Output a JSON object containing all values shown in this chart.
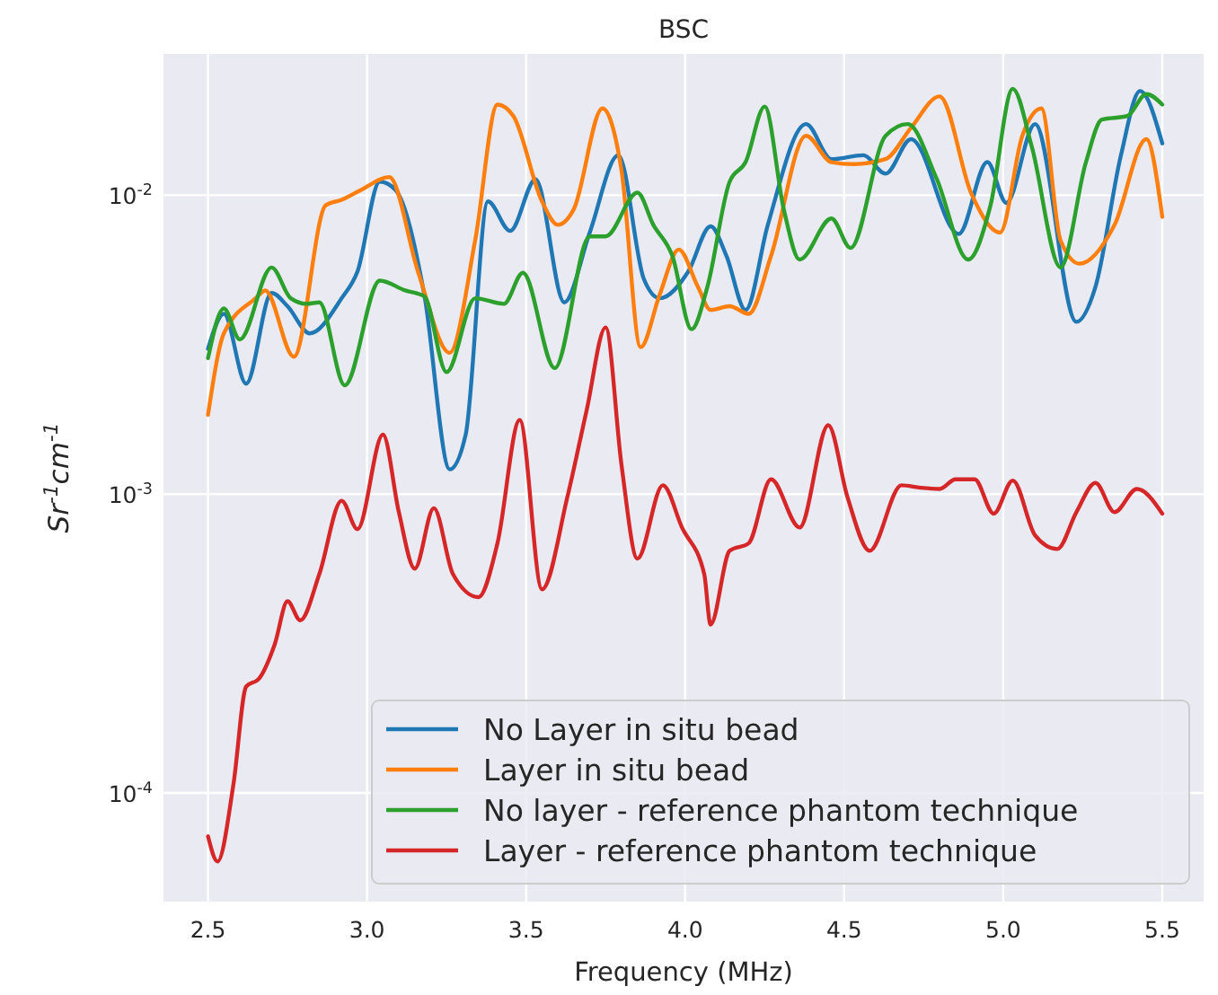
{
  "chart_data": {
    "type": "line",
    "title": "BSC",
    "xlabel": "Frequency (MHz)",
    "ylabel": "Sr$^{-1}$cm$^{-1}$",
    "log": "y",
    "grid": true,
    "legend": "bottom right",
    "line_style": "solid",
    "marker": "none",
    "xlim": [
      2.36,
      5.63
    ],
    "xticks": [
      {
        "value": 2.5,
        "label": "2.5"
      },
      {
        "value": 3,
        "label": "3.0"
      },
      {
        "value": 3.5,
        "label": "3.5"
      },
      {
        "value": 4,
        "label": "4.0"
      },
      {
        "value": 4.5,
        "label": "4.5"
      },
      {
        "value": 5,
        "label": "5.0"
      },
      {
        "value": 5.5,
        "label": "5.5"
      }
    ],
    "ylim": [
      4.33e-05,
      0.0297
    ],
    "yticks": [
      {
        "value": 0.0001,
        "label": "10$^{-4}$"
      },
      {
        "value": 0.001,
        "label": "10$^{-3}$"
      },
      {
        "value": 0.01,
        "label": "10$^{-2}$"
      }
    ],
    "series": [
      {
        "name": "No Layer in situ bead",
        "color": "#1f77b4",
        "x": [
          2.5,
          2.55,
          2.62,
          2.7,
          2.75,
          2.82,
          2.92,
          2.97,
          3.04,
          3.09,
          3.18,
          3.26,
          3.31,
          3.38,
          3.45,
          3.53,
          3.62,
          3.7,
          3.79,
          3.87,
          3.92,
          4.01,
          4.08,
          4.13,
          4.19,
          4.26,
          4.38,
          4.46,
          4.56,
          4.63,
          4.71,
          4.86,
          4.95,
          5.01,
          5.1,
          5.23,
          5.29,
          5.37,
          5.43,
          5.5
        ],
        "values": [
          0.00306,
          0.00401,
          0.00234,
          0.00471,
          0.00425,
          0.00345,
          0.00452,
          0.00556,
          0.0111,
          0.0104,
          0.00465,
          0.00121,
          0.00158,
          0.00953,
          0.0076,
          0.0113,
          0.00438,
          0.0075,
          0.0136,
          0.00525,
          0.00452,
          0.00556,
          0.00787,
          0.00626,
          0.00413,
          0.00796,
          0.0173,
          0.0132,
          0.0136,
          0.0118,
          0.0154,
          0.00742,
          0.0129,
          0.00942,
          0.0173,
          0.00377,
          0.00494,
          0.0136,
          0.0223,
          0.0149
        ]
      },
      {
        "name": "Layer in situ bead",
        "color": "#ff7f0e",
        "x": [
          2.5,
          2.55,
          2.65,
          2.68,
          2.77,
          2.87,
          2.92,
          2.98,
          3.07,
          3.16,
          3.26,
          3.34,
          3.41,
          3.46,
          3.55,
          3.6,
          3.65,
          3.74,
          3.8,
          3.86,
          3.92,
          3.98,
          4.04,
          4.08,
          4.14,
          4.2,
          4.27,
          4.38,
          4.46,
          4.53,
          4.63,
          4.71,
          4.8,
          4.9,
          4.99,
          5.06,
          5.12,
          5.18,
          5.24,
          5.35,
          5.45,
          5.5
        ],
        "values": [
          0.00184,
          0.00345,
          0.00452,
          0.0048,
          0.00288,
          0.00925,
          0.00965,
          0.0104,
          0.0115,
          0.00556,
          0.00297,
          0.00707,
          0.0201,
          0.0184,
          0.00953,
          0.00796,
          0.00898,
          0.0195,
          0.0121,
          0.0031,
          0.00465,
          0.00658,
          0.00494,
          0.00413,
          0.00425,
          0.00401,
          0.00626,
          0.0158,
          0.0129,
          0.0127,
          0.0132,
          0.0168,
          0.0214,
          0.0101,
          0.0075,
          0.0158,
          0.0195,
          0.00707,
          0.0059,
          0.00796,
          0.0154,
          0.00846
        ]
      },
      {
        "name": "No layer - reference phantom technique",
        "color": "#2ca02c",
        "x": [
          2.5,
          2.55,
          2.6,
          2.7,
          2.76,
          2.81,
          2.85,
          2.93,
          3.04,
          3.12,
          3.18,
          3.25,
          3.34,
          3.43,
          3.49,
          3.59,
          3.7,
          3.75,
          3.85,
          3.9,
          3.96,
          4.02,
          4.07,
          4.14,
          4.19,
          4.25,
          4.31,
          4.36,
          4.46,
          4.52,
          4.63,
          4.7,
          4.79,
          4.89,
          4.96,
          5.03,
          5.09,
          5.18,
          5.26,
          5.31,
          5.39,
          5.45,
          5.5
        ],
        "values": [
          0.00285,
          0.00418,
          0.00329,
          0.00573,
          0.00452,
          0.00433,
          0.00438,
          0.00231,
          0.00518,
          0.0048,
          0.00459,
          0.00256,
          0.00452,
          0.00433,
          0.0055,
          0.00264,
          0.00728,
          0.00728,
          0.0102,
          0.00796,
          0.00626,
          0.00356,
          0.00494,
          0.0111,
          0.0129,
          0.0198,
          0.00898,
          0.00609,
          0.00836,
          0.00666,
          0.0158,
          0.0173,
          0.0114,
          0.00609,
          0.00925,
          0.0227,
          0.0145,
          0.00573,
          0.0129,
          0.0179,
          0.0184,
          0.0218,
          0.0201
        ]
      },
      {
        "name": "Layer - reference phantom technique",
        "color": "#d62728",
        "x": [
          2.5,
          2.53,
          2.58,
          2.62,
          2.66,
          2.71,
          2.75,
          2.79,
          2.85,
          2.92,
          2.97,
          3.05,
          3.1,
          3.15,
          3.21,
          3.27,
          3.35,
          3.41,
          3.48,
          3.55,
          3.63,
          3.69,
          3.75,
          3.8,
          3.85,
          3.93,
          3.99,
          4.06,
          4.08,
          4.14,
          4.2,
          4.27,
          4.36,
          4.45,
          4.51,
          4.58,
          4.68,
          4.74,
          4.8,
          4.85,
          4.91,
          4.97,
          5.03,
          5.1,
          5.17,
          5.23,
          5.29,
          5.35,
          5.42,
          5.5
        ],
        "values": [
          7.16e-05,
          5.9e-05,
          0.000107,
          0.000227,
          0.000241,
          0.000315,
          0.000438,
          0.000378,
          0.00054,
          0.00095,
          0.000763,
          0.00158,
          0.00087,
          0.000563,
          0.000897,
          0.00054,
          0.000452,
          0.000685,
          0.00177,
          0.00048,
          0.00098,
          0.0019,
          0.00361,
          0.00125,
          0.000608,
          0.00107,
          0.000773,
          0.00054,
          0.000366,
          0.000646,
          0.000685,
          0.00112,
          0.000773,
          0.0017,
          0.00098,
          0.000646,
          0.00107,
          0.00105,
          0.00104,
          0.00112,
          0.00112,
          0.00086,
          0.00111,
          0.000728,
          0.000655,
          0.00087,
          0.00109,
          0.00087,
          0.00104,
          0.00086
        ]
      }
    ]
  }
}
